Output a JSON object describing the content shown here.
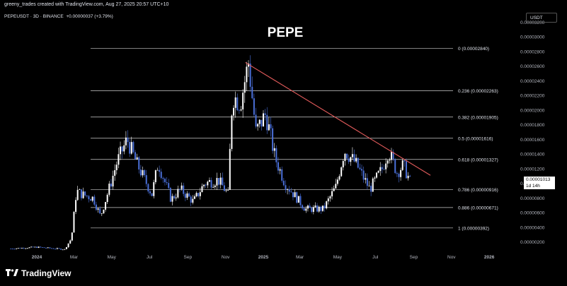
{
  "header": {
    "attribution": "greeny_trades created with TradingView.com, Aug 27, 2025 20:57 UTC+10",
    "symbol": "PEPEUSDT · 3D · BINANCE",
    "change": "+0.00000037 (+3.79%)",
    "currency": "USDT"
  },
  "brand": {
    "name": "TradingView",
    "icon": "tradingview-logo-icon"
  },
  "last_price": {
    "value": "0.00001013",
    "countdown": "1d 14h"
  },
  "colors": {
    "background": "#000000",
    "candle_up": "#ffffff",
    "candle_down": "#4a6fd8",
    "trendline": "#e05a5a",
    "fib_line": "#cccccc",
    "text": "#d1d4dc"
  },
  "chart_data": {
    "type": "line",
    "title": "PEPE",
    "x_axis_ticks": [
      "2024",
      "Mar",
      "May",
      "Jul",
      "Sep",
      "Nov",
      "2025",
      "Mar",
      "May",
      "Jul",
      "Sep",
      "Nov",
      "2026"
    ],
    "y_axis_ticks": [
      "0.00003200",
      "0.00003000",
      "0.00002800",
      "0.00002600",
      "0.00002400",
      "0.00002200",
      "0.00002000",
      "0.00001800",
      "0.00001600",
      "0.00001400",
      "0.00001200",
      "0.00001000",
      "0.00000800",
      "0.00000600",
      "0.00000400",
      "0.00000200"
    ],
    "ylim": [
      1.3e-06,
      3.29e-05
    ],
    "fib_levels": [
      {
        "ratio": "0",
        "value": 2.84e-05,
        "label": "0 (0.00002840)"
      },
      {
        "ratio": "0.236",
        "value": 2.263e-05,
        "label": "0.236 (0.00002263)"
      },
      {
        "ratio": "0.382",
        "value": 1.905e-05,
        "label": "0.382 (0.00001905)"
      },
      {
        "ratio": "0.5",
        "value": 1.616e-05,
        "label": "0.5 (0.00001616)"
      },
      {
        "ratio": "0.618",
        "value": 1.327e-05,
        "label": "0.618 (0.00001327)"
      },
      {
        "ratio": "0.786",
        "value": 9.16e-06,
        "label": "0.786 (0.00000916)"
      },
      {
        "ratio": "0.886",
        "value": 6.71e-06,
        "label": "0.886 (0.00000671)"
      },
      {
        "ratio": "1",
        "value": 3.92e-06,
        "label": "1 (0.00000392)"
      }
    ],
    "trendline": {
      "start": [
        "2024-12-03",
        2.65e-05
      ],
      "end": [
        "2025-09-28",
        1.11e-05
      ]
    },
    "price_series": [
      {
        "date": "2023-11-20",
        "close": 1.1e-06
      },
      {
        "date": "2024-01-01",
        "close": 1.3e-06
      },
      {
        "date": "2024-02-15",
        "close": 1e-06
      },
      {
        "date": "2024-02-26",
        "close": 2.5e-06
      },
      {
        "date": "2024-03-05",
        "close": 9e-06
      },
      {
        "date": "2024-03-14",
        "close": 8.5e-06
      },
      {
        "date": "2024-04-01",
        "close": 8e-06
      },
      {
        "date": "2024-04-13",
        "close": 5.5e-06
      },
      {
        "date": "2024-04-25",
        "close": 8.8e-06
      },
      {
        "date": "2024-05-10",
        "close": 1.3e-05
      },
      {
        "date": "2024-05-26",
        "close": 1.6e-05
      },
      {
        "date": "2024-06-10",
        "close": 1.28e-05
      },
      {
        "date": "2024-07-05",
        "close": 8.5e-06
      },
      {
        "date": "2024-07-15",
        "close": 1.28e-05
      },
      {
        "date": "2024-08-05",
        "close": 7.8e-06
      },
      {
        "date": "2024-08-20",
        "close": 9.2e-06
      },
      {
        "date": "2024-09-10",
        "close": 7.5e-06
      },
      {
        "date": "2024-09-28",
        "close": 1e-05
      },
      {
        "date": "2024-10-20",
        "close": 1.05e-05
      },
      {
        "date": "2024-11-05",
        "close": 8.5e-06
      },
      {
        "date": "2024-11-12",
        "close": 2.2e-05
      },
      {
        "date": "2024-11-25",
        "close": 2.1e-05
      },
      {
        "date": "2024-12-08",
        "close": 2.65e-05
      },
      {
        "date": "2024-12-20",
        "close": 1.7e-05
      },
      {
        "date": "2025-01-05",
        "close": 1.95e-05
      },
      {
        "date": "2025-01-20",
        "close": 1.35e-05
      },
      {
        "date": "2025-02-05",
        "close": 1e-05
      },
      {
        "date": "2025-03-10",
        "close": 6.5e-06
      },
      {
        "date": "2025-04-08",
        "close": 6.5e-06
      },
      {
        "date": "2025-04-28",
        "close": 9.5e-06
      },
      {
        "date": "2025-05-12",
        "close": 1.45e-05
      },
      {
        "date": "2025-05-30",
        "close": 1.28e-05
      },
      {
        "date": "2025-06-22",
        "close": 9.2e-06
      },
      {
        "date": "2025-07-12",
        "close": 1.2e-05
      },
      {
        "date": "2025-07-22",
        "close": 1.45e-05
      },
      {
        "date": "2025-08-05",
        "close": 1.15e-05
      },
      {
        "date": "2025-08-15",
        "close": 1.25e-05
      },
      {
        "date": "2025-08-27",
        "close": 1.01e-05
      }
    ]
  }
}
